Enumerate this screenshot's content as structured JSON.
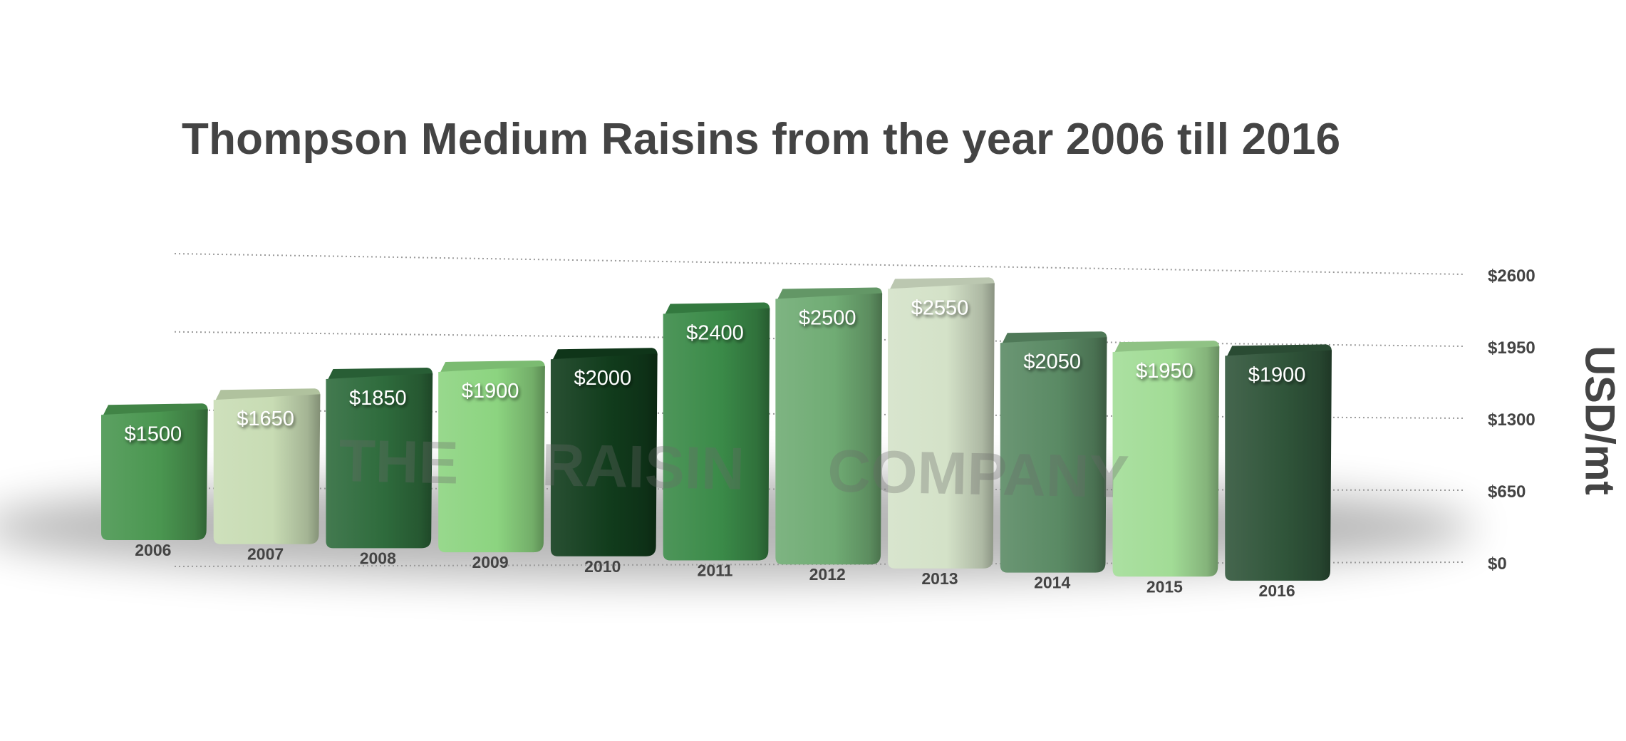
{
  "chart_data": {
    "type": "bar",
    "title": "Thompson Medium Raisins from the year 2006 till 2016",
    "ylabel": "USD/mt",
    "xlabel": "",
    "categories": [
      "2006",
      "2007",
      "2008",
      "2009",
      "2010",
      "2011",
      "2012",
      "2013",
      "2014",
      "2015",
      "2016"
    ],
    "values": [
      1500,
      1650,
      1850,
      1900,
      2000,
      2400,
      2500,
      2550,
      2050,
      1950,
      1900
    ],
    "value_labels": [
      "$1500",
      "$1650",
      "$1850",
      "$1900",
      "$2000",
      "$2400",
      "$2500",
      "$2550",
      "$2050",
      "$1950",
      "$1900"
    ],
    "yticks": [
      0,
      650,
      1300,
      1950,
      2600
    ],
    "ytick_labels": [
      "$0",
      "$650",
      "$1300",
      "$1950",
      "$2600"
    ],
    "ylim": [
      0,
      2600
    ],
    "grid": true,
    "style": "3d-perspective",
    "bar_colors": [
      "#4a9650",
      "#c8dcb4",
      "#2e6b3c",
      "#8cd480",
      "#113c1c",
      "#3a8a48",
      "#70ac74",
      "#d4e2c8",
      "#5a8a64",
      "#a2dc96",
      "#30553a"
    ],
    "watermark": "THE     RAISIN     COMPANY"
  }
}
